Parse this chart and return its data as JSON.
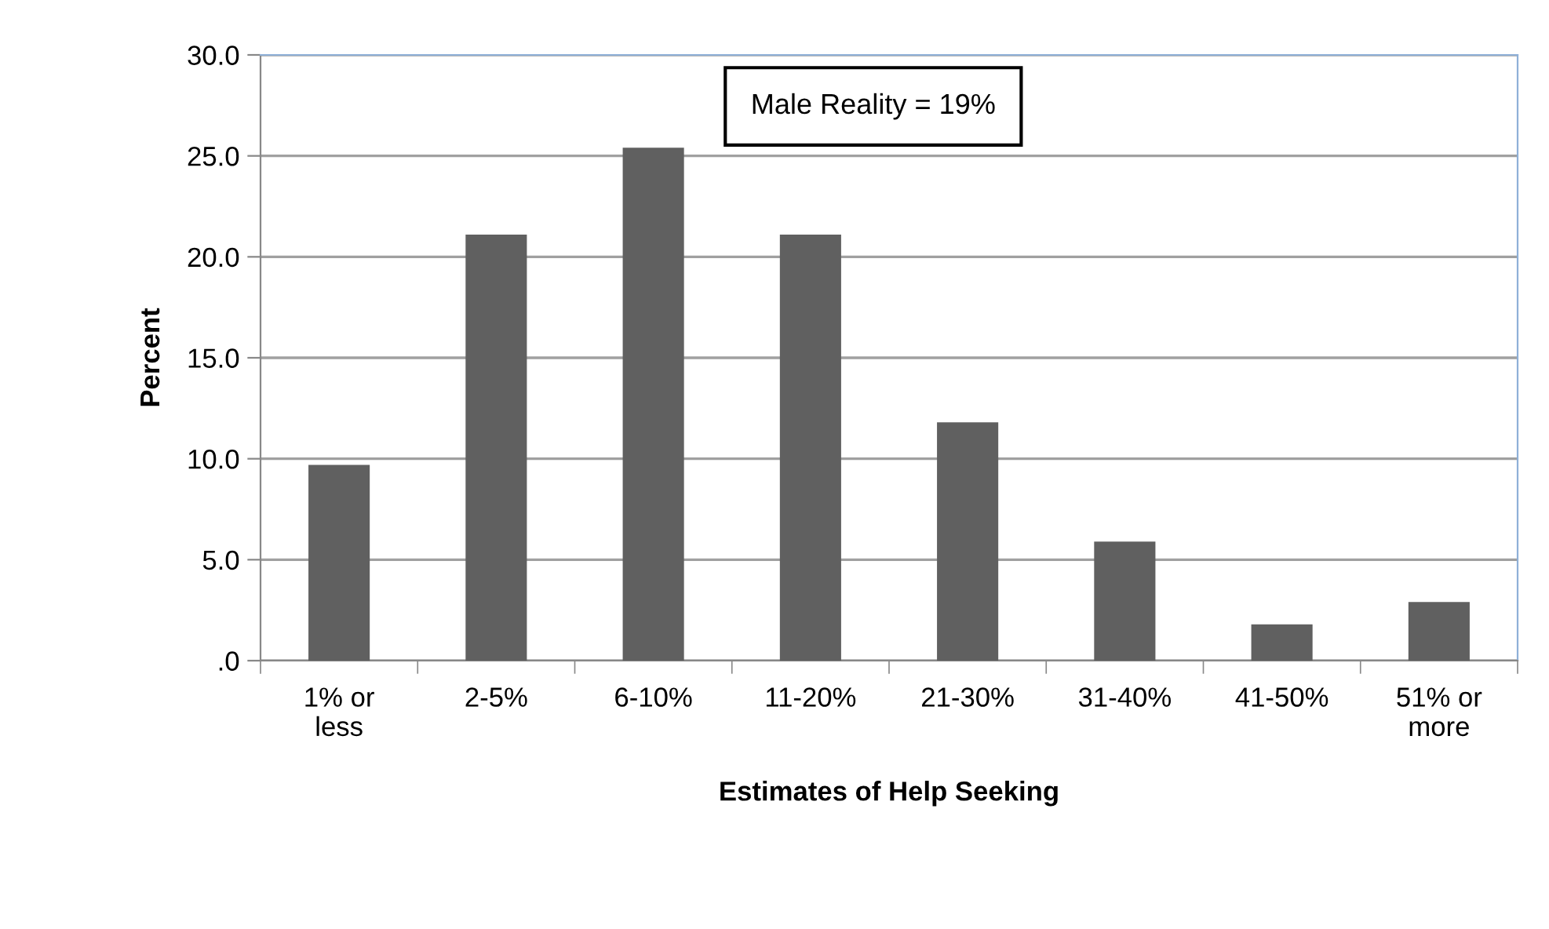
{
  "chart_data": {
    "type": "bar",
    "xlabel": "Estimates of Help Seeking",
    "ylabel": "Percent",
    "categories": [
      "1% or\nless",
      "2-5%",
      "6-10%",
      "11-20%",
      "21-30%",
      "31-40%",
      "41-50%",
      "51% or\nmore"
    ],
    "values": [
      9.7,
      21.1,
      25.4,
      21.1,
      11.8,
      5.9,
      1.8,
      2.9
    ],
    "color": "#606060",
    "ylim": [
      0,
      30
    ],
    "yticks": [
      {
        "value": 0,
        "label": ".0"
      },
      {
        "value": 5,
        "label": "5.0"
      },
      {
        "value": 10,
        "label": "10.0"
      },
      {
        "value": 15,
        "label": "15.0"
      },
      {
        "value": 20,
        "label": "20.0"
      },
      {
        "value": 25,
        "label": "25.0"
      },
      {
        "value": 30,
        "label": "30.0"
      }
    ],
    "grid": "y",
    "annotations": [
      "Male Reality = 19%"
    ]
  }
}
